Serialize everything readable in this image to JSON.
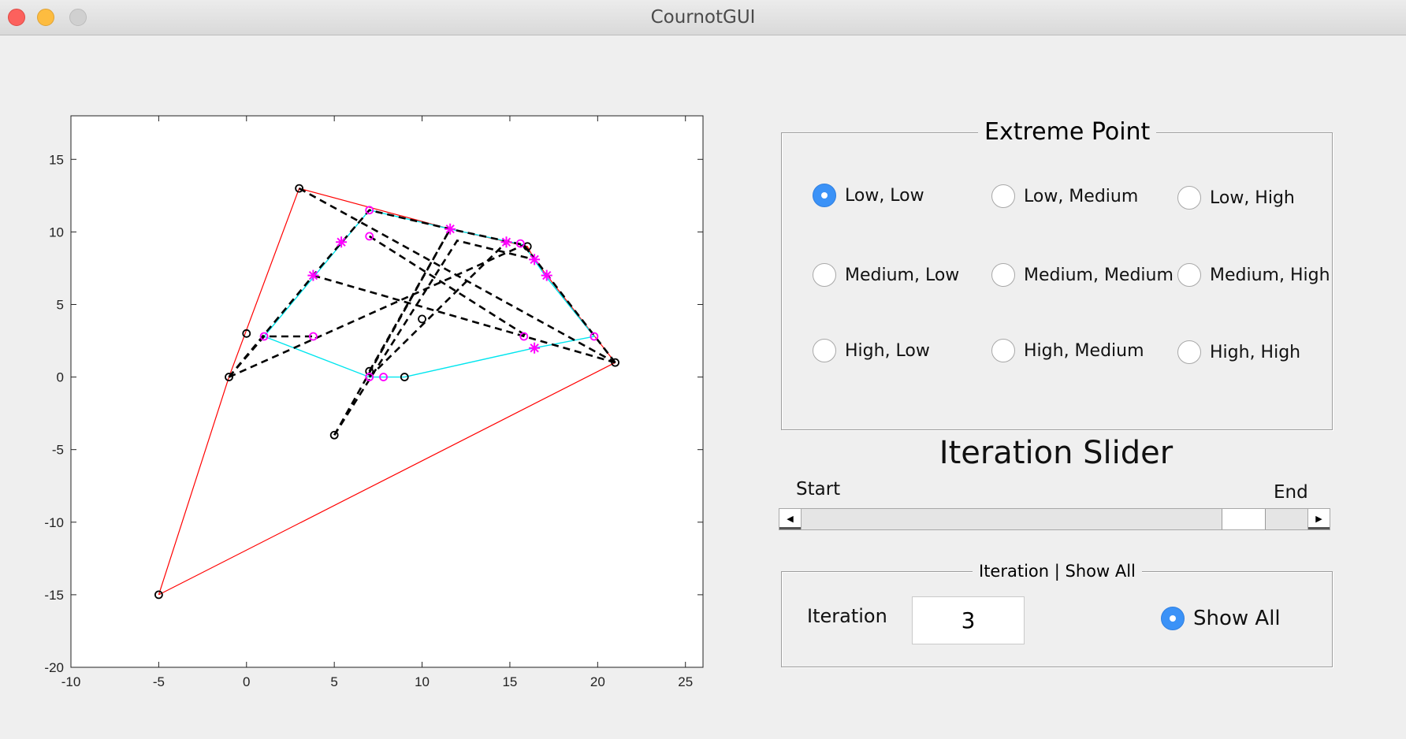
{
  "window": {
    "title": "CournotGUI"
  },
  "colors": {
    "boundary": "#ff0000",
    "cyan_path": "#00e5ee",
    "markers": "#ff00ff",
    "dashed": "#000000"
  },
  "chart_data": {
    "type": "scatter",
    "title": "",
    "xlabel": "",
    "ylabel": "",
    "xlim": [
      -10,
      26
    ],
    "ylim": [
      -20,
      18
    ],
    "xticks": [
      -10,
      -5,
      0,
      5,
      10,
      15,
      20,
      25
    ],
    "yticks": [
      15,
      10,
      5,
      0,
      -5,
      -10,
      -15,
      -20
    ],
    "grid": false,
    "series": [
      {
        "style": "red-line",
        "points": [
          [
            -5,
            -15
          ],
          [
            -1,
            0
          ],
          [
            3,
            13
          ],
          [
            11.6,
            10.2
          ],
          [
            16,
            9
          ],
          [
            16.4,
            8.1
          ],
          [
            21,
            1
          ],
          [
            -5,
            -15
          ]
        ]
      },
      {
        "style": "cyan-line",
        "points": [
          [
            1,
            2.8
          ],
          [
            7,
            11.5
          ],
          [
            11.6,
            10.2
          ],
          [
            15.8,
            9.1
          ],
          [
            17,
            7
          ],
          [
            19.8,
            2.8
          ],
          [
            16.4,
            2
          ],
          [
            9,
            0
          ],
          [
            7.8,
            0
          ],
          [
            7,
            0
          ],
          [
            1,
            2.8
          ]
        ]
      },
      {
        "style": "dashed-black",
        "points": [
          [
            3,
            13
          ],
          [
            21,
            1
          ]
        ]
      },
      {
        "style": "dashed-black",
        "points": [
          [
            -1,
            0
          ],
          [
            3.8,
            7
          ],
          [
            7,
            11.5
          ],
          [
            11.6,
            10.2
          ],
          [
            15.8,
            9.1
          ],
          [
            16.4,
            8.1
          ]
        ]
      },
      {
        "style": "dashed-black",
        "points": [
          [
            -1,
            0
          ],
          [
            15.8,
            9.1
          ]
        ]
      },
      {
        "style": "dashed-black",
        "points": [
          [
            -1,
            0
          ],
          [
            1,
            2.8
          ],
          [
            3.8,
            2.8
          ]
        ]
      },
      {
        "style": "dashed-black",
        "points": [
          [
            3.8,
            7
          ],
          [
            21,
            1
          ]
        ]
      },
      {
        "style": "dashed-black",
        "points": [
          [
            15.8,
            9.1
          ],
          [
            21,
            1
          ]
        ]
      },
      {
        "style": "dashed-black",
        "points": [
          [
            5,
            -4
          ],
          [
            11.6,
            10.2
          ]
        ]
      },
      {
        "style": "dashed-black",
        "points": [
          [
            5,
            -4
          ],
          [
            12,
            9.4
          ],
          [
            16.4,
            8.1
          ]
        ]
      },
      {
        "style": "dashed-black",
        "points": [
          [
            7,
            0
          ],
          [
            14.8,
            9.3
          ]
        ]
      },
      {
        "style": "dashed-black",
        "points": [
          [
            7,
            0.4
          ],
          [
            11.6,
            10.2
          ]
        ]
      },
      {
        "style": "dashed-black",
        "points": [
          [
            7,
            9.7
          ],
          [
            16,
            2.8
          ]
        ]
      }
    ],
    "points_black_circle": [
      [
        -5,
        -15
      ],
      [
        -1,
        0
      ],
      [
        0,
        3
      ],
      [
        3,
        13
      ],
      [
        5,
        -4
      ],
      [
        7,
        0.4
      ],
      [
        9,
        0
      ],
      [
        10,
        4
      ],
      [
        16,
        9
      ],
      [
        21,
        1
      ]
    ],
    "points_magenta_circle": [
      [
        1,
        2.8
      ],
      [
        3.8,
        2.8
      ],
      [
        7,
        11.5
      ],
      [
        7,
        9.7
      ],
      [
        7,
        0
      ],
      [
        7.8,
        0
      ],
      [
        15.6,
        9.2
      ],
      [
        15.8,
        2.8
      ],
      [
        19.8,
        2.8
      ]
    ],
    "points_magenta_star": [
      [
        3.8,
        7
      ],
      [
        5.4,
        9.3
      ],
      [
        11.6,
        10.2
      ],
      [
        14.8,
        9.3
      ],
      [
        16.4,
        8.1
      ],
      [
        17.1,
        7
      ],
      [
        16.4,
        2
      ]
    ]
  },
  "extreme_point": {
    "title": "Extreme Point",
    "options": [
      {
        "label": "Low, Low",
        "selected": true
      },
      {
        "label": "Low, Medium",
        "selected": false
      },
      {
        "label": "Low, High",
        "selected": false
      },
      {
        "label": "Medium, Low",
        "selected": false
      },
      {
        "label": "Medium, Medium",
        "selected": false
      },
      {
        "label": "Medium, High",
        "selected": false
      },
      {
        "label": "High, Low",
        "selected": false
      },
      {
        "label": "High, Medium",
        "selected": false
      },
      {
        "label": "High, High",
        "selected": false
      }
    ]
  },
  "iteration_slider": {
    "title": "Iteration Slider",
    "start_label": "Start",
    "end_label": "End",
    "value_fraction": 0.91
  },
  "iteration_panel": {
    "title": "Iteration | Show All",
    "iteration_label": "Iteration",
    "iteration_value": "3",
    "show_all_label": "Show All",
    "show_all_selected": true
  }
}
